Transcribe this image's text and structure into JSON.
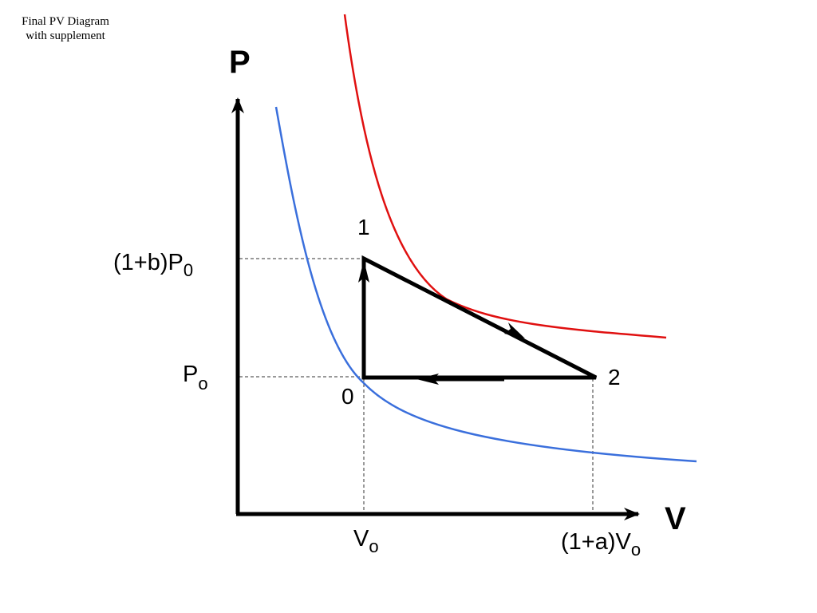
{
  "caption": "Final PV Diagram with supplement",
  "axes": {
    "y_label": "P",
    "x_label": "V"
  },
  "ticks": {
    "p_high": {
      "main": "(1+b)P",
      "sub": "0"
    },
    "p_low": {
      "main": "P",
      "sub": "o"
    },
    "v_low": {
      "main": "V",
      "sub": "o"
    },
    "v_high": {
      "main": "(1+a)V",
      "sub": "o"
    }
  },
  "points": {
    "state0": "0",
    "state1": "1",
    "state2": "2"
  },
  "colors": {
    "hot_isotherm": "#e01010",
    "cold_isotherm": "#3a6fdc",
    "cycle": "#000000",
    "guide": "#333333"
  }
}
